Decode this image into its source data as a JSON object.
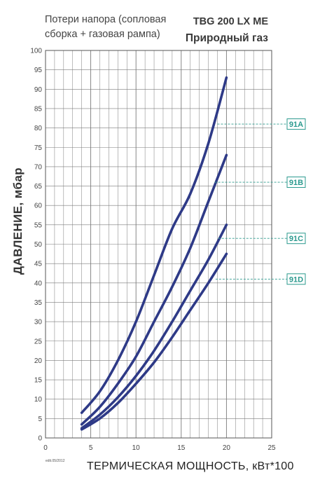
{
  "header": {
    "subtitle_line1": "Потери напора (сопловая",
    "subtitle_line2": "сборка + газовая рампа)",
    "model": "TBG 200 LX ME",
    "gas": "Природный газ"
  },
  "footnote": "edit.05/2012",
  "colors": {
    "curve": "#2e3a87",
    "grid": "#7a7a7a",
    "tag": "#2b9a8e"
  },
  "chart_data": {
    "type": "line",
    "title": "",
    "xlabel": "ТЕРМИЧЕСКАЯ МОЩНОСТЬ, кВт*100",
    "ylabel": "ДАВЛЕНИЕ, мбар",
    "xlim": [
      0,
      25
    ],
    "ylim": [
      0,
      100
    ],
    "x_ticks": [
      0,
      5,
      10,
      15,
      20,
      25
    ],
    "y_ticks": [
      0,
      5,
      10,
      15,
      20,
      25,
      30,
      35,
      40,
      45,
      50,
      55,
      60,
      65,
      70,
      75,
      80,
      85,
      90,
      95,
      100
    ],
    "grid": true,
    "series": [
      {
        "name": "91A",
        "x": [
          4,
          6,
          8,
          10,
          12,
          14,
          16,
          18,
          20
        ],
        "y": [
          6.5,
          12,
          20,
          30,
          42,
          54,
          63,
          76,
          93
        ]
      },
      {
        "name": "91B",
        "x": [
          4,
          6,
          8,
          10,
          12,
          14,
          16,
          18,
          20
        ],
        "y": [
          3.5,
          8,
          14,
          21,
          30,
          39,
          49,
          61,
          73
        ]
      },
      {
        "name": "91C",
        "x": [
          4,
          6,
          8,
          10,
          12,
          14,
          16,
          18,
          20
        ],
        "y": [
          2.5,
          6,
          10.5,
          16,
          22.5,
          30,
          38,
          46,
          55
        ]
      },
      {
        "name": "91D",
        "x": [
          4,
          6,
          8,
          10,
          12,
          14,
          16,
          18,
          20
        ],
        "y": [
          2.2,
          5,
          9,
          14,
          19.5,
          26,
          33,
          40,
          47.5
        ]
      }
    ]
  }
}
